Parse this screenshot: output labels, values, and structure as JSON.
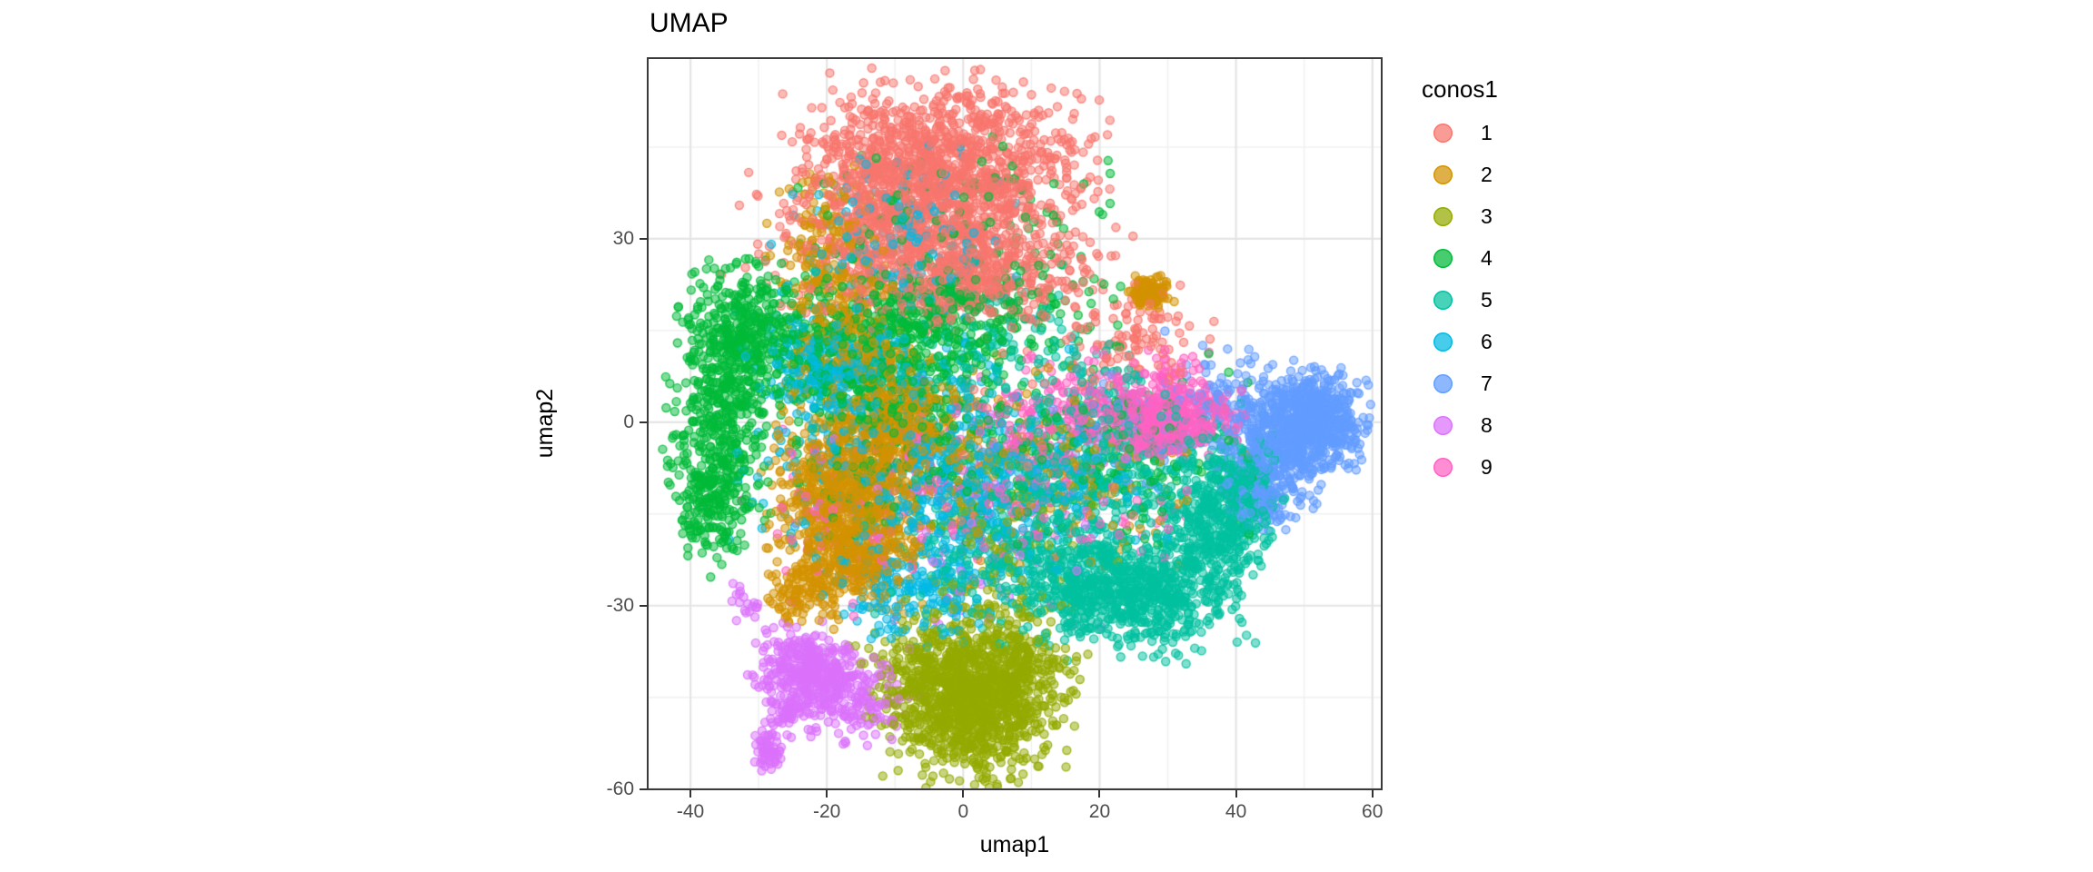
{
  "title": "UMAP",
  "axes": {
    "x": {
      "label": "umap1",
      "tick_labels": [
        "-40",
        "-20",
        "0",
        "20",
        "40",
        "60"
      ],
      "tick_values": [
        -40,
        -20,
        0,
        20,
        40,
        60
      ],
      "minor_ticks": [
        -30,
        -10,
        10,
        30,
        50
      ],
      "domain": [
        -46.4,
        61.5
      ]
    },
    "y": {
      "label": "umap2",
      "tick_labels": [
        "30",
        "0",
        "-30",
        "-60"
      ],
      "tick_values": [
        30,
        0,
        -30,
        -60
      ],
      "minor_ticks": [
        45,
        15,
        -15,
        -45
      ],
      "domain": [
        -60.2,
        59.7
      ]
    }
  },
  "legend": {
    "title": "conos1",
    "entries": [
      {
        "label": "1",
        "color": "#F8766D"
      },
      {
        "label": "2",
        "color": "#D39200"
      },
      {
        "label": "3",
        "color": "#93AA00"
      },
      {
        "label": "4",
        "color": "#00BA38"
      },
      {
        "label": "5",
        "color": "#00C19F"
      },
      {
        "label": "6",
        "color": "#00B9E3"
      },
      {
        "label": "7",
        "color": "#619CFF"
      },
      {
        "label": "8",
        "color": "#DB72FB"
      },
      {
        "label": "9",
        "color": "#FF61C3"
      }
    ]
  },
  "style": {
    "background": "#FFFFFF",
    "panel_border": "#3A3A3A",
    "grid_major": "#E4E4E4",
    "grid_minor": "#F0F0F0",
    "tick_label_color": "#4D4D4D",
    "text_color": "#000000"
  },
  "chart_data": {
    "type": "scatter",
    "title": "UMAP",
    "xlabel": "umap1",
    "ylabel": "umap2",
    "xlim": [
      -46.4,
      61.5
    ],
    "ylim": [
      -60.2,
      59.7
    ],
    "x_ticks": [
      -40,
      -20,
      0,
      20,
      40,
      60
    ],
    "y_ticks": [
      30,
      0,
      -30,
      -60
    ],
    "grid": "major-and-minor",
    "legend_position": "right",
    "legend_title": "conos1",
    "point_style": {
      "radius": 4.5,
      "fill_alpha": 0.5,
      "stroke_alpha": 0.8,
      "stroke_width": 1.4
    },
    "density": 0.75,
    "seed": 7,
    "description": "UMAP embedding of ~15000 cells colored by 9 conos clusters; clusters given as gaussian mixture components [cx, cy, sx, sy, n] in data coordinates",
    "series": [
      {
        "name": "1",
        "color": "#F8766D",
        "center": [
          -3,
          38
        ],
        "components": [
          [
            -3,
            43,
            9.5,
            6,
            1400
          ],
          [
            -7,
            32,
            10,
            5,
            800
          ],
          [
            2,
            25,
            9,
            4,
            450
          ],
          [
            -5,
            21,
            12,
            3,
            200
          ],
          [
            25,
            13,
            5,
            4,
            140
          ],
          [
            8,
            0,
            12,
            10,
            80
          ]
        ]
      },
      {
        "name": "2",
        "color": "#D39200",
        "center": [
          -15,
          -8
        ],
        "components": [
          [
            -17,
            -11,
            5,
            6.5,
            900
          ],
          [
            -9,
            0,
            4.5,
            4.5,
            420
          ],
          [
            -16,
            -22,
            4.5,
            4,
            400
          ],
          [
            -23,
            -28,
            2.5,
            2.5,
            130
          ],
          [
            -19,
            28,
            4,
            6,
            260
          ],
          [
            -16,
            12,
            4,
            6,
            280
          ],
          [
            27.5,
            21.5,
            1.4,
            1.2,
            140
          ],
          [
            8,
            -8,
            13,
            8,
            300
          ]
        ]
      },
      {
        "name": "3",
        "color": "#93AA00",
        "center": [
          1,
          -44
        ],
        "components": [
          [
            1,
            -46,
            6,
            5.5,
            1450
          ],
          [
            8,
            -40,
            4,
            3.5,
            220
          ],
          [
            -4,
            -38,
            5,
            3,
            180
          ],
          [
            3,
            -30,
            6,
            3,
            120
          ],
          [
            5,
            -15,
            8,
            6,
            100
          ]
        ]
      },
      {
        "name": "4",
        "color": "#00BA38",
        "center": [
          -22,
          7
        ],
        "components": [
          [
            -35,
            4,
            3.5,
            9,
            600
          ],
          [
            -31,
            15,
            4.5,
            5,
            350
          ],
          [
            -37,
            -13,
            2.5,
            5,
            250
          ],
          [
            -5,
            18,
            11,
            4,
            550
          ],
          [
            -12,
            9,
            8,
            5,
            350
          ],
          [
            -5,
            -3,
            13,
            9,
            450
          ],
          [
            25,
            -5,
            8,
            7,
            180
          ],
          [
            0,
            33,
            10,
            6,
            150
          ]
        ]
      },
      {
        "name": "5",
        "color": "#00C19F",
        "center": [
          24,
          -18
        ],
        "components": [
          [
            17,
            -26,
            5,
            4.5,
            450
          ],
          [
            28,
            -28,
            6,
            4.5,
            700
          ],
          [
            37,
            -18,
            4,
            4.5,
            420
          ],
          [
            40,
            -10,
            3,
            4,
            260
          ],
          [
            6,
            -20,
            9,
            7,
            300
          ],
          [
            30,
            -6,
            6,
            5,
            220
          ],
          [
            15,
            -10,
            7,
            6,
            260
          ],
          [
            5,
            12,
            8,
            6,
            140
          ],
          [
            20,
            2,
            6,
            5,
            120
          ]
        ]
      },
      {
        "name": "6",
        "color": "#00B9E3",
        "center": [
          -8,
          -4
        ],
        "components": [
          [
            -8,
            -6,
            11,
            11,
            650
          ],
          [
            -20,
            9,
            5,
            4,
            330
          ],
          [
            -10,
            30,
            7,
            6,
            200
          ],
          [
            -6,
            -28,
            6,
            4,
            240
          ],
          [
            2,
            -12,
            6,
            6,
            220
          ],
          [
            15,
            -8,
            8,
            7,
            150
          ]
        ]
      },
      {
        "name": "7",
        "color": "#619CFF",
        "center": [
          48,
          -2
        ],
        "components": [
          [
            51,
            0,
            3.5,
            4,
            850
          ],
          [
            46,
            -4,
            3.5,
            5,
            420
          ],
          [
            43,
            -11,
            2.5,
            3,
            150
          ],
          [
            38,
            3,
            4,
            4,
            160
          ],
          [
            25,
            0,
            10,
            7,
            60
          ]
        ]
      },
      {
        "name": "8",
        "color": "#DB72FB",
        "center": [
          -23,
          -42
        ],
        "components": [
          [
            -24,
            -40,
            3,
            3,
            330
          ],
          [
            -19.5,
            -43,
            2.8,
            3.2,
            230
          ],
          [
            -26,
            -47,
            1.5,
            2,
            80
          ],
          [
            -28.5,
            -54,
            1.2,
            1.5,
            80
          ],
          [
            -32,
            -30,
            1.3,
            1.8,
            25
          ],
          [
            -14,
            -46,
            3.5,
            4,
            140
          ],
          [
            0,
            -15,
            10,
            10,
            80
          ]
        ]
      },
      {
        "name": "9",
        "color": "#FF61C3",
        "center": [
          25,
          0
        ],
        "components": [
          [
            31.5,
            0.5,
            4,
            2.8,
            420
          ],
          [
            25.5,
            0,
            3.5,
            3,
            230
          ],
          [
            15,
            2,
            5,
            4,
            160
          ],
          [
            5,
            -10,
            13,
            8,
            320
          ],
          [
            30,
            8,
            3,
            2.5,
            60
          ],
          [
            -20,
            -15,
            6,
            8,
            60
          ]
        ]
      }
    ]
  }
}
